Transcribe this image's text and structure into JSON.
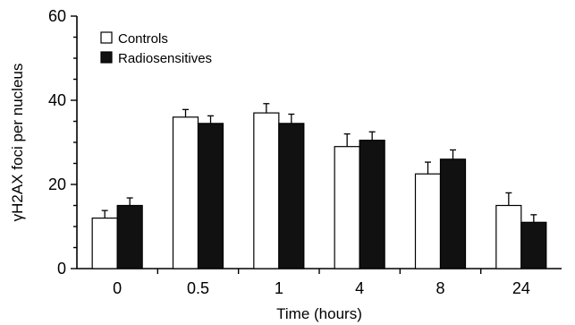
{
  "chart_data": {
    "type": "bar",
    "categories": [
      "0",
      "0.5",
      "1",
      "4",
      "8",
      "24"
    ],
    "series": [
      {
        "name": "Controls",
        "color": "#ffffff",
        "values": [
          12,
          36,
          37,
          29,
          22.5,
          15
        ],
        "errors": [
          1.8,
          1.8,
          2.2,
          3.0,
          2.8,
          3.0
        ]
      },
      {
        "name": "Radiosensitives",
        "color": "#111111",
        "values": [
          15,
          34.5,
          34.5,
          30.5,
          26,
          11
        ],
        "errors": [
          1.8,
          1.8,
          2.2,
          2.0,
          2.2,
          1.8
        ]
      }
    ],
    "xlabel": "Time (hours)",
    "ylabel": "γH2AX foci per nucleus",
    "ylim": [
      0,
      60
    ],
    "yticks": [
      "0",
      "20",
      "40",
      "60"
    ],
    "grid": false,
    "legend_position": "top-left"
  }
}
